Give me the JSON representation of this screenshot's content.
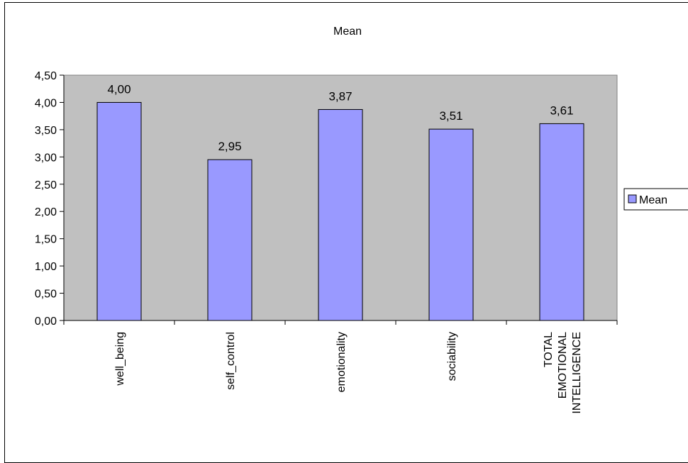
{
  "chart_data": {
    "type": "bar",
    "title": "Mean",
    "categories": [
      "well_being",
      "self_control",
      "emotionality",
      "sociability",
      "TOTAL EMOTIONAL INTELLIGENCE"
    ],
    "category_label_lines": [
      [
        "well_being"
      ],
      [
        "self_control"
      ],
      [
        "emotionality"
      ],
      [
        "sociability"
      ],
      [
        "TOTAL",
        "EMOTIONAL",
        "INTELLIGENCE"
      ]
    ],
    "series": [
      {
        "name": "Mean",
        "values": [
          4.0,
          2.95,
          3.87,
          3.51,
          3.61
        ]
      }
    ],
    "data_labels": [
      "4,00",
      "2,95",
      "3,87",
      "3,51",
      "3,61"
    ],
    "ylim": [
      0,
      4.5
    ],
    "y_ticks": [
      0,
      0.5,
      1,
      1.5,
      2,
      2.5,
      3,
      3.5,
      4,
      4.5
    ],
    "y_tick_labels": [
      "0,00",
      "0,50",
      "1,00",
      "1,50",
      "2,00",
      "2,50",
      "3,00",
      "3,50",
      "4,00",
      "4,50"
    ],
    "xlabel": "",
    "ylabel": "",
    "legend_position": "right",
    "colors": {
      "bar_fill": "#9999ff",
      "plot_background": "#c0c0c0",
      "axis": "#000000"
    }
  }
}
